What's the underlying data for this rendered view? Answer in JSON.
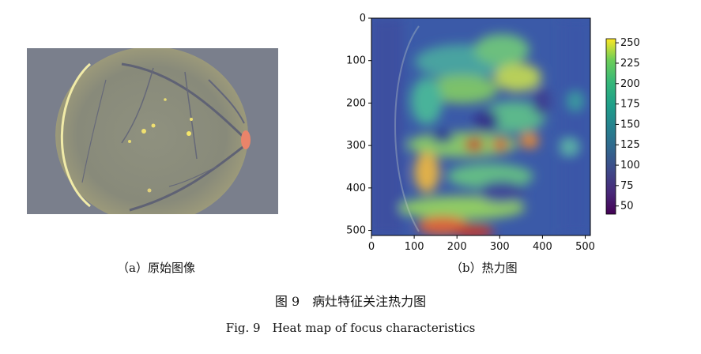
{
  "panel_a": {
    "caption": "（a）原始图像"
  },
  "panel_b": {
    "caption": "（b）热力图"
  },
  "figure": {
    "caption_zh": "图 9　病灶特征关注热力图",
    "caption_en": "Fig. 9　Heat map of focus characteristics"
  },
  "colors": {
    "gray_bg": "#7a7f8c",
    "frame": "#000000"
  },
  "chart_data": {
    "type": "heatmap",
    "title": "",
    "xlabel": "",
    "ylabel": "",
    "xlim": [
      0,
      512
    ],
    "ylim": [
      512,
      0
    ],
    "x_ticks": [
      "0",
      "100",
      "200",
      "300",
      "400",
      "500"
    ],
    "y_ticks": [
      "0",
      "100",
      "200",
      "300",
      "400",
      "500"
    ],
    "x_tick_values": [
      0,
      100,
      200,
      300,
      400,
      500
    ],
    "y_tick_values": [
      0,
      100,
      200,
      300,
      400,
      500
    ],
    "colorbar": {
      "range": [
        40,
        255
      ],
      "ticks": [
        "250",
        "225",
        "200",
        "175",
        "150",
        "125",
        "100",
        "75",
        "50"
      ],
      "tick_values": [
        250,
        225,
        200,
        175,
        150,
        125,
        100,
        75,
        50
      ],
      "colormap": "viridis"
    }
  }
}
